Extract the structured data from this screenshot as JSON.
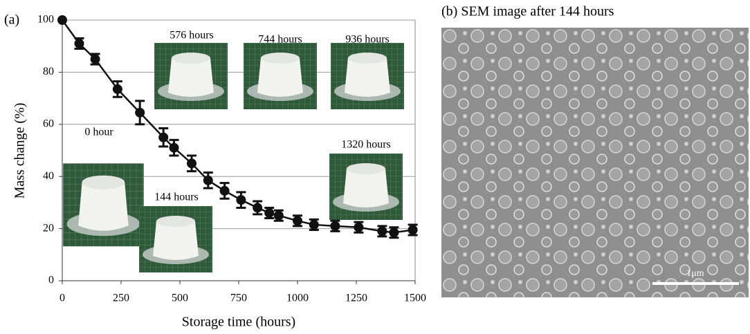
{
  "chart_data": {
    "type": "line",
    "panel_label": "(a)",
    "x_label": "Storage time (hours)",
    "y_label": "Mass change (%)",
    "x": [
      0,
      72,
      140,
      235,
      330,
      430,
      475,
      550,
      620,
      690,
      760,
      830,
      880,
      920,
      1000,
      1070,
      1160,
      1260,
      1360,
      1410,
      1490
    ],
    "series": [
      {
        "color": "#111111",
        "values": [
          100,
          91,
          85,
          73.5,
          64.5,
          55,
          51,
          45,
          38.5,
          34.5,
          31,
          28,
          26,
          25,
          23,
          21.5,
          21,
          20.5,
          19,
          18.5,
          19.5
        ],
        "errors": [
          0,
          2,
          2,
          3,
          4.5,
          3.5,
          3,
          3,
          3,
          3,
          3,
          2.5,
          2,
          2,
          2,
          2,
          2,
          2,
          2,
          2,
          2
        ]
      }
    ],
    "xlim": [
      0,
      1500
    ],
    "ylim": [
      0,
      100
    ],
    "xticks": [
      0,
      250,
      500,
      750,
      1000,
      1250,
      1500
    ],
    "yticks": [
      0,
      20,
      40,
      60,
      80,
      100
    ],
    "grid": true,
    "annotations": [
      "576 hours",
      "744 hours",
      "936 hours",
      "0 hour",
      "144 hours",
      "1320 hours"
    ]
  },
  "sem_panel": {
    "title": "(b) SEM image after 144 hours",
    "scale_bar": "1μm"
  }
}
